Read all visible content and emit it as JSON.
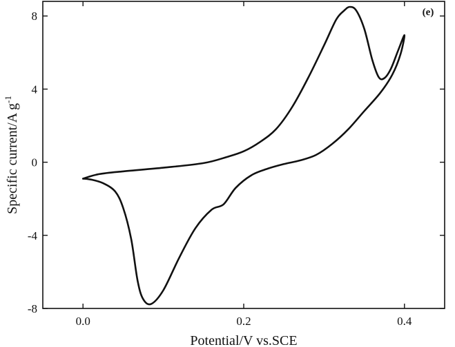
{
  "chart_data": {
    "type": "line",
    "title": "",
    "panel_label": "(e)",
    "xlabel": "Potential/V vs.SCE",
    "ylabel_main": "Specific current/A g",
    "ylabel_sup": "-1",
    "xlim": [
      -0.05,
      0.45
    ],
    "ylim": [
      -8,
      8.8
    ],
    "xticks": [
      0.0,
      0.2,
      0.4
    ],
    "xtick_labels": [
      "0.0",
      "0.2",
      "0.4"
    ],
    "yticks": [
      -8,
      -4,
      0,
      4,
      8
    ],
    "ytick_labels": [
      "-8",
      "-4",
      "0",
      "4",
      "8"
    ],
    "grid": false,
    "legend": "none",
    "line_color": "#111111",
    "series": [
      {
        "points": [
          [
            0.0,
            -0.9
          ],
          [
            0.02,
            -0.65
          ],
          [
            0.05,
            -0.5
          ],
          [
            0.1,
            -0.3
          ],
          [
            0.15,
            -0.05
          ],
          [
            0.18,
            0.3
          ],
          [
            0.2,
            0.6
          ],
          [
            0.22,
            1.1
          ],
          [
            0.24,
            1.8
          ],
          [
            0.26,
            3.0
          ],
          [
            0.28,
            4.6
          ],
          [
            0.3,
            6.4
          ],
          [
            0.315,
            7.8
          ],
          [
            0.325,
            8.3
          ],
          [
            0.332,
            8.5
          ],
          [
            0.34,
            8.3
          ],
          [
            0.35,
            7.3
          ],
          [
            0.36,
            5.6
          ],
          [
            0.368,
            4.65
          ],
          [
            0.375,
            4.6
          ],
          [
            0.383,
            5.1
          ],
          [
            0.392,
            6.1
          ],
          [
            0.4,
            6.95
          ],
          [
            0.395,
            5.9
          ],
          [
            0.385,
            4.8
          ],
          [
            0.37,
            3.8
          ],
          [
            0.35,
            2.8
          ],
          [
            0.33,
            1.8
          ],
          [
            0.31,
            1.0
          ],
          [
            0.29,
            0.4
          ],
          [
            0.27,
            0.1
          ],
          [
            0.25,
            -0.1
          ],
          [
            0.23,
            -0.35
          ],
          [
            0.21,
            -0.7
          ],
          [
            0.19,
            -1.4
          ],
          [
            0.175,
            -2.3
          ],
          [
            0.16,
            -2.6
          ],
          [
            0.14,
            -3.6
          ],
          [
            0.12,
            -5.2
          ],
          [
            0.1,
            -7.0
          ],
          [
            0.085,
            -7.75
          ],
          [
            0.075,
            -7.5
          ],
          [
            0.068,
            -6.5
          ],
          [
            0.06,
            -4.2
          ],
          [
            0.05,
            -2.5
          ],
          [
            0.04,
            -1.6
          ],
          [
            0.025,
            -1.15
          ],
          [
            0.01,
            -0.95
          ],
          [
            0.0,
            -0.9
          ]
        ]
      }
    ]
  }
}
